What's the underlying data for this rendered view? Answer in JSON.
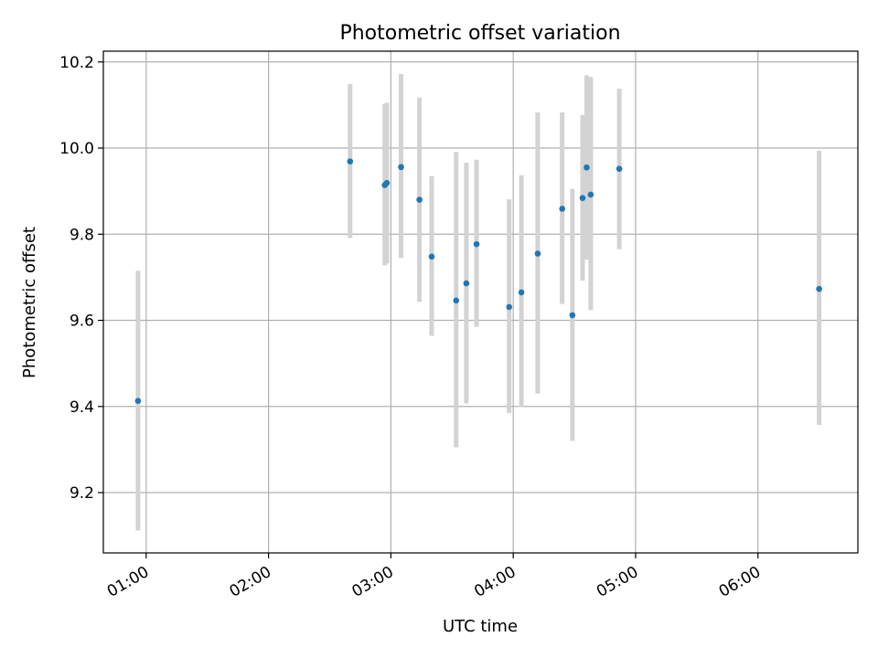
{
  "chart_data": {
    "type": "scatter",
    "title": "Photometric offset variation",
    "xlabel": "UTC time",
    "ylabel": "Photometric offset",
    "grid": true,
    "xlim": [
      "00:39",
      "06:49"
    ],
    "ylim": [
      9.06,
      10.225
    ],
    "x_ticks": [
      "01:00",
      "02:00",
      "03:00",
      "04:00",
      "05:00",
      "06:00"
    ],
    "y_ticks": [
      9.2,
      9.4,
      9.6,
      9.8,
      10.0,
      10.2
    ],
    "colors": {
      "point": "#1f77b4",
      "errorbar": "#d3d3d3",
      "grid": "#b0b0b0"
    },
    "series": [
      {
        "points": [
          {
            "x": "00:56",
            "y": 9.413,
            "low": 9.112,
            "high": 9.715
          },
          {
            "x": "02:40",
            "y": 9.969,
            "low": 9.791,
            "high": 10.149
          },
          {
            "x": "02:57",
            "y": 9.914,
            "low": 9.728,
            "high": 10.102
          },
          {
            "x": "02:58",
            "y": 9.919,
            "low": 9.732,
            "high": 10.105
          },
          {
            "x": "03:05",
            "y": 9.956,
            "low": 9.745,
            "high": 10.172
          },
          {
            "x": "03:14",
            "y": 9.88,
            "low": 9.643,
            "high": 10.117
          },
          {
            "x": "03:20",
            "y": 9.748,
            "low": 9.564,
            "high": 9.935
          },
          {
            "x": "03:32",
            "y": 9.646,
            "low": 9.305,
            "high": 9.991
          },
          {
            "x": "03:37",
            "y": 9.686,
            "low": 9.407,
            "high": 9.966
          },
          {
            "x": "03:42",
            "y": 9.777,
            "low": 9.585,
            "high": 9.973
          },
          {
            "x": "03:58",
            "y": 9.631,
            "low": 9.385,
            "high": 9.881
          },
          {
            "x": "04:04",
            "y": 9.665,
            "low": 9.399,
            "high": 9.937
          },
          {
            "x": "04:12",
            "y": 9.755,
            "low": 9.43,
            "high": 10.083
          },
          {
            "x": "04:24",
            "y": 9.859,
            "low": 9.638,
            "high": 10.083
          },
          {
            "x": "04:29",
            "y": 9.612,
            "low": 9.32,
            "high": 9.905
          },
          {
            "x": "04:34",
            "y": 9.884,
            "low": 9.692,
            "high": 10.077
          },
          {
            "x": "04:36",
            "y": 9.955,
            "low": 9.741,
            "high": 10.169
          },
          {
            "x": "04:38",
            "y": 9.892,
            "low": 9.624,
            "high": 10.165
          },
          {
            "x": "04:52",
            "y": 9.952,
            "low": 9.765,
            "high": 10.138
          },
          {
            "x": "06:30",
            "y": 9.673,
            "low": 9.357,
            "high": 9.994
          }
        ]
      }
    ]
  }
}
